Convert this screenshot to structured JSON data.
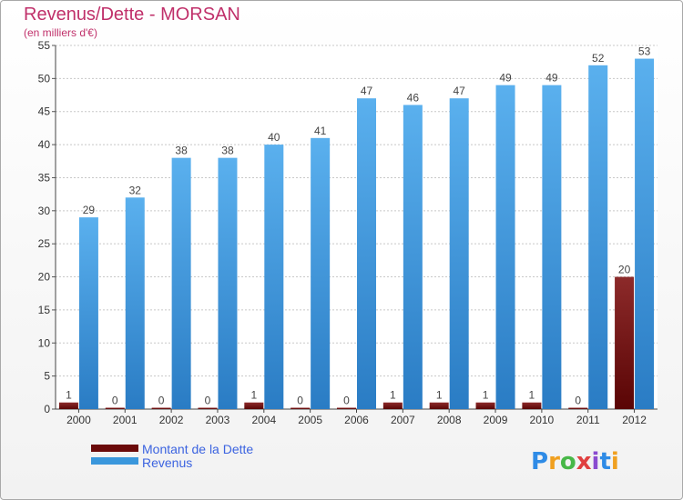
{
  "chart_data": {
    "type": "bar",
    "title": "Revenus/Dette - MORSAN",
    "subtitle": "(en milliers d'€)",
    "categories": [
      "2000",
      "2001",
      "2002",
      "2003",
      "2004",
      "2005",
      "2006",
      "2007",
      "2008",
      "2009",
      "2010",
      "2011",
      "2012"
    ],
    "series": [
      {
        "name": "Montant de la Dette",
        "values": [
          1,
          0,
          0,
          0,
          1,
          0,
          0,
          1,
          1,
          1,
          1,
          0,
          20
        ],
        "color": "#6b0a0a"
      },
      {
        "name": "Revenus",
        "values": [
          29,
          32,
          38,
          38,
          40,
          41,
          47,
          46,
          47,
          49,
          49,
          52,
          53
        ],
        "color": "#3a97dc"
      }
    ],
    "yticks": [
      0,
      5,
      10,
      15,
      20,
      25,
      30,
      35,
      40,
      45,
      50,
      55
    ],
    "ylim": [
      0,
      55
    ],
    "grid": true,
    "legend_position": "bottom-left"
  },
  "branding": {
    "logo_text": "Proxiti",
    "logo_colors": [
      "#2e8be6",
      "#f0a020",
      "#48b848",
      "#e04040",
      "#8a4bd0",
      "#2e8be6",
      "#f0a020"
    ]
  }
}
